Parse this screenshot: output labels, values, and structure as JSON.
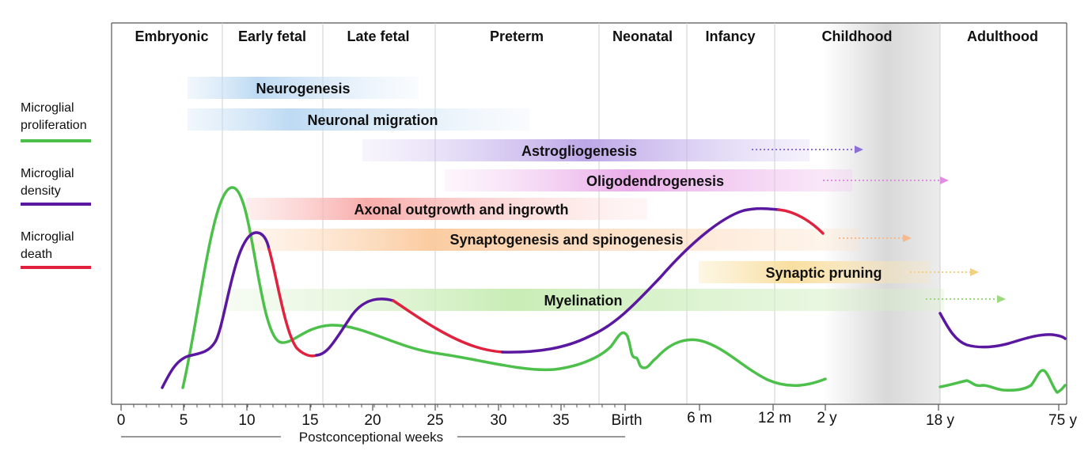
{
  "stages": [
    "Embryonic",
    "Early fetal",
    "Late fetal",
    "Preterm",
    "Neonatal",
    "Infancy",
    "Childhood",
    "Adulthood"
  ],
  "processes": [
    {
      "label": "Neurogenesis",
      "color": "#9ec9ec"
    },
    {
      "label": "Neuronal migration",
      "color": "#9ec9ec"
    },
    {
      "label": "Astrogliogenesis",
      "color": "#a98ee0"
    },
    {
      "label": "Oligodendrogenesis",
      "color": "#e59be3"
    },
    {
      "label": "Axonal outgrowth and ingrowth",
      "color": "#f79a98"
    },
    {
      "label": "Synaptogenesis and spinogenesis",
      "color": "#f9bf8c"
    },
    {
      "label": "Synaptic pruning",
      "color": "#f7d88a"
    },
    {
      "label": "Myelination",
      "color": "#b8e6a0"
    }
  ],
  "ticks": [
    "0",
    "5",
    "10",
    "15",
    "20",
    "25",
    "30",
    "35",
    "Birth",
    "6 m",
    "12 m",
    "2 y",
    "18 y",
    "75 y"
  ],
  "axis_title": "Postconceptional weeks",
  "legend": [
    {
      "label_lines": [
        "Microglial",
        "proliferation"
      ],
      "color": "#4cc04a"
    },
    {
      "label_lines": [
        "Microglial",
        "density"
      ],
      "color": "#5a17a0"
    },
    {
      "label_lines": [
        "Microglial",
        "death"
      ],
      "color": "#e0223e"
    }
  ],
  "colors": {
    "proliferation": "#4cc04a",
    "density": "#5a17a0",
    "death": "#e0223e",
    "childhood_shade": "#b9b9b9"
  }
}
